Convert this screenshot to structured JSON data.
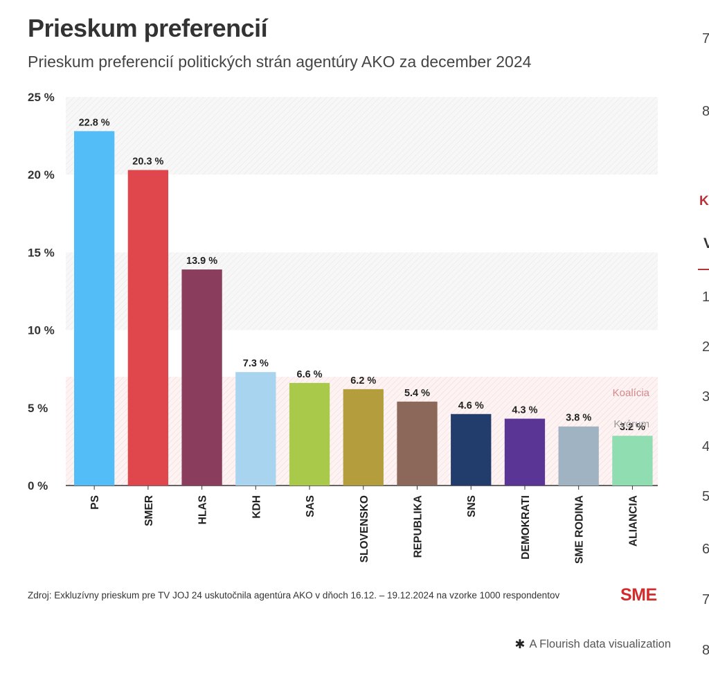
{
  "title": "Prieskum preferencií",
  "subtitle": "Prieskum preferencií politických strán agentúry AKO za december 2024",
  "source": "Zdroj: Exkluzívny prieskum pre TV JOJ 24 uskutočnila agentúra AKO v dňoch 16.12. – 19.12.2024 na vzorke 1000 respondentov",
  "logo": "SME",
  "credit": "A Flourish data visualization",
  "side_numbers": [
    "7",
    "8",
    "1",
    "2",
    "3",
    "4",
    "5",
    "6",
    "7",
    "8"
  ],
  "side_tab": "Ko",
  "side_head": "V",
  "chart_data": {
    "type": "bar",
    "categories": [
      "PS",
      "SMER",
      "HLAS",
      "KDH",
      "SAS",
      "SLOVENSKO",
      "REPUBLIKA",
      "SNS",
      "DEMOKRATI",
      "SME RODINA",
      "ALIANCIA"
    ],
    "values": [
      22.8,
      20.3,
      13.9,
      7.3,
      6.6,
      6.2,
      5.4,
      4.6,
      4.3,
      3.8,
      3.2
    ],
    "value_labels": [
      "22.8 %",
      "20.3 %",
      "13.9 %",
      "7.3 %",
      "6.6 %",
      "6.2 %",
      "5.4 %",
      "4.6 %",
      "4.3 %",
      "3.8 %",
      "3.2 %"
    ],
    "colors": [
      "#52bdf7",
      "#e0474c",
      "#8a3d5d",
      "#a8d4ef",
      "#a8c94a",
      "#b49d3c",
      "#8b6859",
      "#223d6b",
      "#5b3596",
      "#9fb3c2",
      "#8fddb0"
    ],
    "ylim": [
      0,
      25
    ],
    "yticks": [
      0,
      5,
      10,
      15,
      20,
      25
    ],
    "ytick_labels": [
      "0 %",
      "5 %",
      "10 %",
      "15 %",
      "20 %",
      "25 %"
    ],
    "bands": [
      {
        "from": 20,
        "to": 25
      },
      {
        "from": 10,
        "to": 15
      },
      {
        "from": 0,
        "to": 7,
        "color": "#f5d9da"
      }
    ],
    "thresholds": [
      {
        "label": "Koalícia",
        "value": 7,
        "color": "#d4888c"
      },
      {
        "label": "Kvórum",
        "value": 5,
        "color": "#999999"
      }
    ],
    "grid": false
  }
}
